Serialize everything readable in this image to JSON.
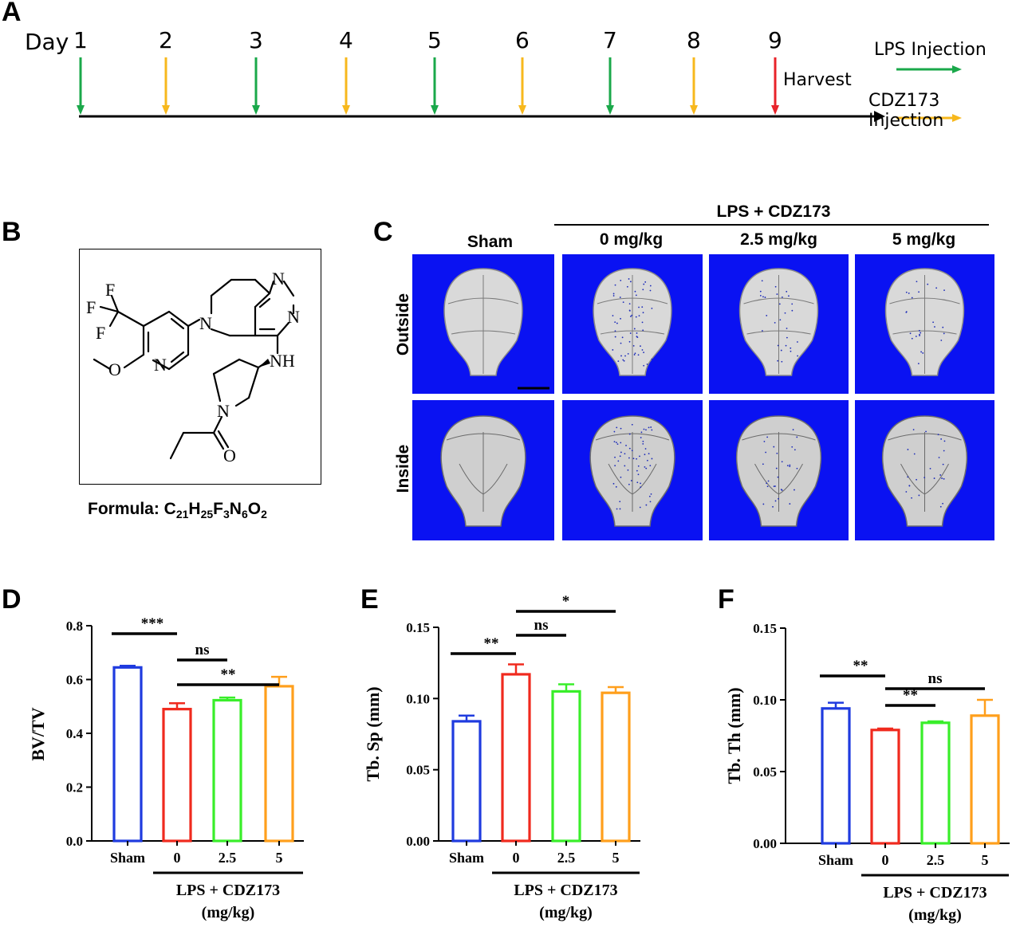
{
  "panel_a": {
    "letter": "A",
    "day_label": "Day",
    "days": [
      "1",
      "2",
      "3",
      "4",
      "5",
      "6",
      "7",
      "8",
      "9"
    ],
    "harvest_label": "Harvest",
    "legend": [
      {
        "label": "LPS Injection",
        "color": "#1aa84a"
      },
      {
        "label": "CDZ173 Injection",
        "color": "#f7b81d"
      }
    ],
    "colors": {
      "lps": "#1aa84a",
      "cdz": "#f7b81d",
      "harvest": "#e8232a"
    }
  },
  "panel_b": {
    "letter": "B",
    "formula_prefix": "Formula: C",
    "formula_parts": [
      {
        "t": "Formula: C",
        "sub": "21"
      },
      {
        "t": "H",
        "sub": "25"
      },
      {
        "t": "F",
        "sub": "3"
      },
      {
        "t": "N",
        "sub": "6"
      },
      {
        "t": "O",
        "sub": "2"
      }
    ],
    "atoms": {
      "F": "F",
      "N": "N",
      "O": "O",
      "NH": "NH"
    }
  },
  "panel_c": {
    "letter": "C",
    "group_header": "LPS + CDZ173",
    "columns": [
      "Sham",
      "0 mg/kg",
      "2.5 mg/kg",
      "5 mg/kg"
    ],
    "rows": [
      "Outside",
      "Inside"
    ],
    "tile_color": "#0a12f2"
  },
  "charts": [
    {
      "letter": "D",
      "chart_data": {
        "type": "bar",
        "categories": [
          "Sham",
          "0",
          "2.5",
          "5"
        ],
        "values": [
          0.645,
          0.49,
          0.523,
          0.575
        ],
        "errors": [
          0.006,
          0.022,
          0.01,
          0.035
        ],
        "colors": [
          "#1f3bdf",
          "#f02a1e",
          "#39ee2a",
          "#ff9f1c"
        ],
        "ylabel": "BV/TV",
        "ylim": [
          0,
          0.8
        ],
        "yticks": [
          "0.0",
          "0.2",
          "0.4",
          "0.6",
          "0.8"
        ],
        "group_label": [
          "LPS + CDZ173",
          "(mg/kg)"
        ],
        "significance": [
          {
            "from": 0,
            "to": 1,
            "label": "***"
          },
          {
            "from": 1,
            "to": 2,
            "label": "ns"
          },
          {
            "from": 1,
            "to": 3,
            "label": "**"
          }
        ]
      }
    },
    {
      "letter": "E",
      "chart_data": {
        "type": "bar",
        "categories": [
          "Sham",
          "0",
          "2.5",
          "5"
        ],
        "values": [
          0.084,
          0.117,
          0.105,
          0.104
        ],
        "errors": [
          0.004,
          0.007,
          0.005,
          0.004
        ],
        "colors": [
          "#1f3bdf",
          "#f02a1e",
          "#39ee2a",
          "#ff9f1c"
        ],
        "ylabel": "Tb. Sp (mm)",
        "ylim": [
          0,
          0.15
        ],
        "yticks": [
          "0.00",
          "0.05",
          "0.10",
          "0.15"
        ],
        "group_label": [
          "LPS + CDZ173",
          "(mg/kg)"
        ],
        "significance": [
          {
            "from": 0,
            "to": 1,
            "label": "**"
          },
          {
            "from": 1,
            "to": 2,
            "label": "ns"
          },
          {
            "from": 1,
            "to": 3,
            "label": "*"
          }
        ]
      }
    },
    {
      "letter": "F",
      "chart_data": {
        "type": "bar",
        "categories": [
          "Sham",
          "0",
          "2.5",
          "5"
        ],
        "values": [
          0.094,
          0.079,
          0.084,
          0.089
        ],
        "errors": [
          0.004,
          0.001,
          0.001,
          0.011
        ],
        "colors": [
          "#1f3bdf",
          "#f02a1e",
          "#39ee2a",
          "#ff9f1c"
        ],
        "ylabel": "Tb. Th (mm)",
        "ylim": [
          0,
          0.15
        ],
        "yticks": [
          "0.00",
          "0.05",
          "0.10",
          "0.15"
        ],
        "group_label": [
          "LPS + CDZ173",
          "(mg/kg)"
        ],
        "significance": [
          {
            "from": 0,
            "to": 1,
            "label": "**"
          },
          {
            "from": 1,
            "to": 2,
            "label": "**"
          },
          {
            "from": 1,
            "to": 3,
            "label": "ns"
          }
        ]
      }
    }
  ]
}
